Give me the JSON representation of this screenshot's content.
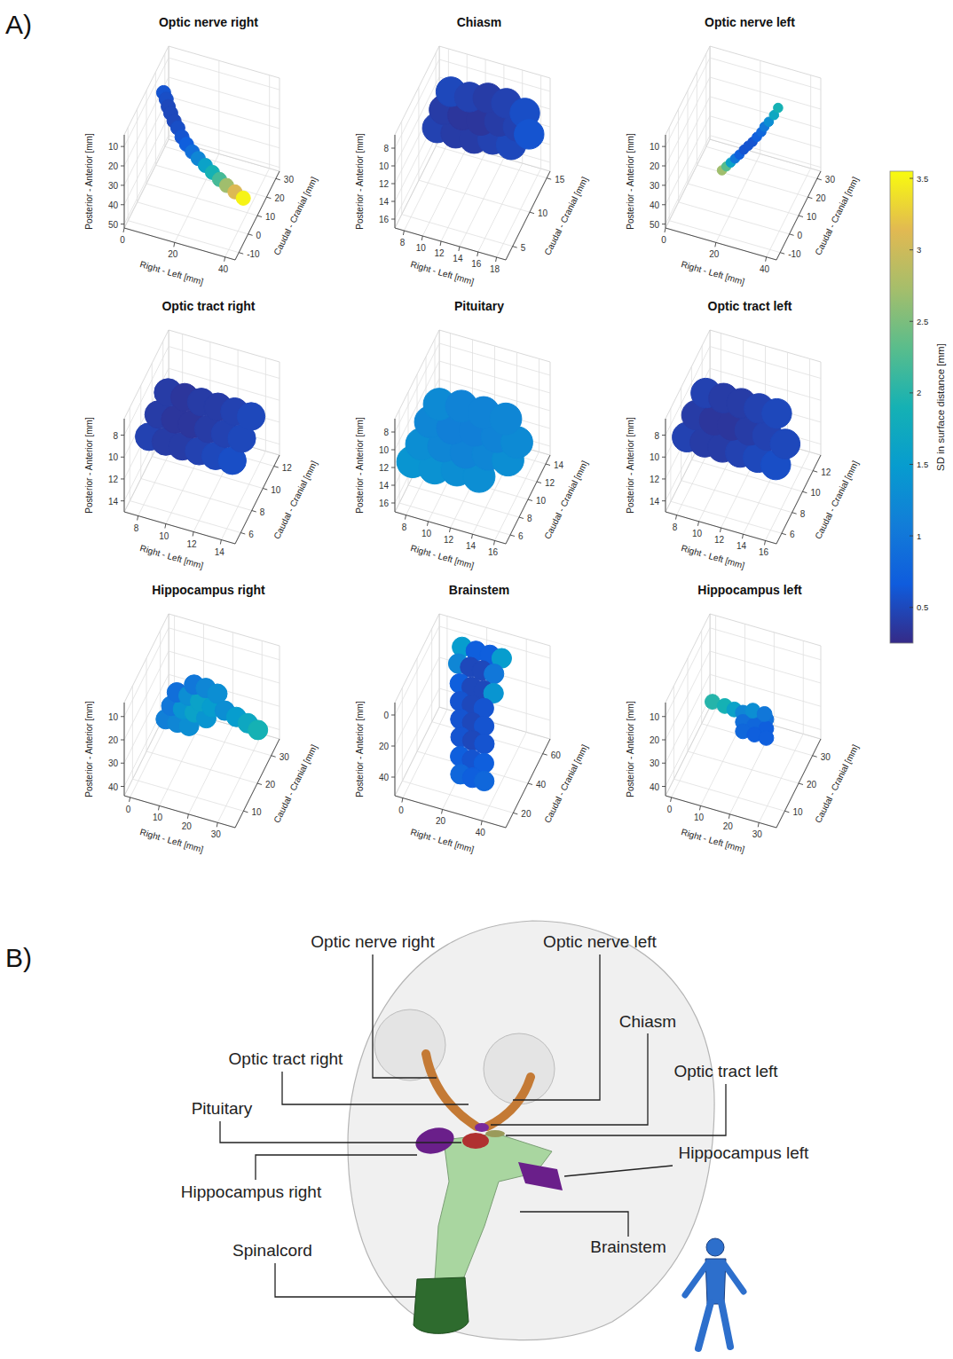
{
  "panel_labels": [
    "A)",
    "B)"
  ],
  "colorbar": {
    "label": "SD in surface distance [mm]",
    "range": [
      0.25,
      3.55
    ],
    "ticks": [
      0.5,
      1,
      1.5,
      2,
      2.5,
      3,
      3.5
    ]
  },
  "chart_data": [
    {
      "type": "scatter3d",
      "title": "Optic nerve right",
      "x_label": "Right - Left [mm]",
      "y_label": "Posterior - Anterior [mm]",
      "z_label": "Caudal - Cranial [mm]",
      "xlim": [
        0,
        44
      ],
      "xticks": [
        0,
        20,
        40
      ],
      "ylim": [
        4,
        52
      ],
      "yticks": [
        10,
        20,
        30,
        40,
        50
      ],
      "zlim": [
        -14,
        34
      ],
      "zticks": [
        -10,
        0,
        10,
        20,
        30
      ],
      "points": {
        "x": [
          5,
          6,
          7,
          8,
          9.5,
          11,
          13,
          15,
          17.5,
          20,
          23,
          26,
          29,
          32,
          35.5,
          39
        ],
        "y": [
          8,
          11,
          14,
          17,
          20,
          23,
          26,
          28.5,
          31,
          33,
          35,
          37,
          39,
          40.5,
          42,
          43.5
        ],
        "z": [
          15,
          15,
          14.5,
          14.5,
          14,
          14,
          13,
          12.5,
          12,
          11.5,
          11,
          10.5,
          10,
          9.5,
          9,
          8.5
        ],
        "sd": [
          0.6,
          0.55,
          0.5,
          0.5,
          0.5,
          0.55,
          0.6,
          0.7,
          0.9,
          1.2,
          1.6,
          1.9,
          2.2,
          2.7,
          3.1,
          3.5
        ]
      }
    },
    {
      "type": "scatter3d",
      "title": "Chiasm",
      "x_label": "Right - Left [mm]",
      "y_label": "Posterior - Anterior [mm]",
      "z_label": "Caudal - Cranial [mm]",
      "xlim": [
        7,
        19
      ],
      "xticks": [
        8,
        10,
        12,
        14,
        16,
        18
      ],
      "ylim": [
        6.5,
        17
      ],
      "yticks": [
        8,
        10,
        12,
        14,
        16
      ],
      "zlim": [
        3,
        16
      ],
      "zticks": [
        5,
        10,
        15
      ],
      "points": {
        "x": [
          9,
          11,
          13,
          15,
          17,
          9,
          11,
          13,
          15,
          17,
          9,
          11,
          13,
          15,
          17,
          18.2
        ],
        "y": [
          10.5,
          10.5,
          10.5,
          10,
          10,
          10,
          10,
          10,
          9.5,
          9.5,
          9.5,
          9.5,
          9,
          9,
          9.5,
          10
        ],
        "z": [
          10,
          10,
          10,
          10,
          10,
          12,
          12,
          12,
          12,
          12,
          14,
          14,
          14,
          14,
          14,
          12
        ],
        "sd": [
          0.45,
          0.4,
          0.4,
          0.45,
          0.5,
          0.4,
          0.35,
          0.35,
          0.4,
          0.45,
          0.5,
          0.45,
          0.4,
          0.45,
          0.55,
          0.6
        ]
      }
    },
    {
      "type": "scatter3d",
      "title": "Optic nerve left",
      "x_label": "Right - Left [mm]",
      "y_label": "Posterior - Anterior [mm]",
      "z_label": "Caudal - Cranial [mm]",
      "xlim": [
        0,
        44
      ],
      "xticks": [
        0,
        20,
        40
      ],
      "ylim": [
        4,
        52
      ],
      "yticks": [
        10,
        20,
        30,
        40,
        50
      ],
      "zlim": [
        -14,
        34
      ],
      "zticks": [
        -10,
        0,
        10,
        20,
        30
      ],
      "points": {
        "x": [
          18,
          19,
          20,
          21,
          22,
          23,
          24,
          25,
          26,
          27,
          27.5,
          28.5,
          29.5,
          30
        ],
        "y": [
          27,
          26.5,
          26,
          25.5,
          25,
          24,
          23.5,
          23,
          22,
          21,
          20,
          19,
          18,
          17
        ],
        "z": [
          -2,
          0,
          2,
          4,
          6,
          8,
          10,
          12,
          14,
          16,
          18,
          20,
          23,
          26
        ],
        "sd": [
          2.7,
          2.3,
          1.6,
          1.0,
          0.7,
          0.6,
          0.6,
          0.6,
          0.7,
          0.8,
          1.0,
          1.3,
          1.7,
          1.9
        ]
      }
    },
    {
      "type": "scatter3d",
      "title": "Optic tract right",
      "x_label": "Right - Left [mm]",
      "y_label": "Posterior - Anterior [mm]",
      "z_label": "Caudal - Cranial [mm]",
      "xlim": [
        7,
        15
      ],
      "xticks": [
        8,
        10,
        12,
        14
      ],
      "ylim": [
        6.5,
        15
      ],
      "yticks": [
        8,
        10,
        12,
        14
      ],
      "zlim": [
        5,
        13
      ],
      "zticks": [
        6,
        8,
        10,
        12
      ],
      "points": {
        "x": [
          8,
          9.2,
          10.4,
          11.6,
          12.8,
          14,
          8,
          9.2,
          10.4,
          11.6,
          12.8,
          14,
          8,
          9.2,
          10.4,
          11.6,
          12.8,
          14
        ],
        "y": [
          9.8,
          9.8,
          9.8,
          9.8,
          9.8,
          9.8,
          9.5,
          9.5,
          9.5,
          9.5,
          9.5,
          9.5,
          9.2,
          9.2,
          9.2,
          9.2,
          9.2,
          9.2
        ],
        "z": [
          7,
          7,
          7,
          7,
          7,
          7,
          8.7,
          8.7,
          8.7,
          8.7,
          8.7,
          8.7,
          10.4,
          10.4,
          10.4,
          10.4,
          10.4,
          10.4
        ],
        "sd": [
          0.45,
          0.4,
          0.4,
          0.45,
          0.5,
          0.55,
          0.4,
          0.35,
          0.35,
          0.4,
          0.45,
          0.5,
          0.4,
          0.35,
          0.4,
          0.4,
          0.45,
          0.5
        ]
      }
    },
    {
      "type": "scatter3d",
      "title": "Pituitary",
      "x_label": "Right - Left [mm]",
      "y_label": "Posterior - Anterior [mm]",
      "z_label": "Caudal - Cranial [mm]",
      "xlim": [
        7,
        17
      ],
      "xticks": [
        8,
        10,
        12,
        14,
        16
      ],
      "ylim": [
        6.5,
        17
      ],
      "yticks": [
        8,
        10,
        12,
        14,
        16
      ],
      "zlim": [
        5,
        15
      ],
      "zticks": [
        6,
        8,
        10,
        12,
        14
      ],
      "points": {
        "x": [
          8,
          10,
          12,
          14,
          8,
          10,
          12,
          14,
          15.8,
          8,
          10,
          12,
          14,
          15.8,
          8,
          10,
          12,
          14
        ],
        "y": [
          12.5,
          12.5,
          12,
          12,
          12.5,
          12,
          12,
          11.5,
          11.5,
          12,
          12,
          11.5,
          11.5,
          11.5,
          12,
          11.5,
          11.5,
          11.5
        ],
        "z": [
          6.5,
          6.5,
          6.5,
          6.5,
          8.5,
          8.5,
          8.5,
          8.5,
          8.5,
          10.5,
          10.5,
          10.5,
          10.5,
          10.5,
          12.5,
          12.5,
          12.5,
          12.5
        ],
        "sd": [
          1.4,
          1.35,
          1.3,
          1.3,
          1.3,
          1.2,
          1.15,
          1.2,
          1.3,
          1.2,
          1.1,
          1.1,
          1.15,
          1.25,
          1.25,
          1.15,
          1.15,
          1.2
        ]
      }
    },
    {
      "type": "scatter3d",
      "title": "Optic tract left",
      "x_label": "Right - Left [mm]",
      "y_label": "Posterior - Anterior [mm]",
      "z_label": "Caudal - Cranial [mm]",
      "xlim": [
        7,
        17
      ],
      "xticks": [
        8,
        10,
        12,
        14,
        16
      ],
      "ylim": [
        6.5,
        15
      ],
      "yticks": [
        8,
        10,
        12,
        14
      ],
      "zlim": [
        5,
        13.5
      ],
      "zticks": [
        6,
        8,
        10,
        12
      ],
      "points": {
        "x": [
          8,
          9.6,
          11.2,
          12.8,
          14.4,
          16,
          8,
          9.6,
          11.2,
          12.8,
          14.4,
          16,
          8,
          9.6,
          11.2,
          12.8,
          14.4
        ],
        "y": [
          9.8,
          9.8,
          9.8,
          9.8,
          9.8,
          10,
          9.5,
          9.5,
          9.5,
          9.5,
          9.5,
          9.8,
          9.2,
          9.2,
          9.2,
          9.2,
          9.2
        ],
        "z": [
          7,
          7,
          7,
          7,
          7,
          7,
          8.8,
          8.8,
          8.8,
          8.8,
          8.8,
          8.8,
          10.6,
          10.6,
          10.6,
          10.6,
          10.6
        ],
        "sd": [
          0.45,
          0.4,
          0.4,
          0.45,
          0.5,
          0.55,
          0.4,
          0.35,
          0.35,
          0.4,
          0.45,
          0.5,
          0.45,
          0.4,
          0.4,
          0.45,
          0.5
        ]
      }
    },
    {
      "type": "scatter3d",
      "title": "Hippocampus right",
      "x_label": "Right - Left [mm]",
      "y_label": "Posterior - Anterior [mm]",
      "z_label": "Caudal - Cranial [mm]",
      "xlim": [
        -2,
        36
      ],
      "xticks": [
        0,
        10,
        20,
        30
      ],
      "ylim": [
        4,
        44
      ],
      "yticks": [
        10,
        20,
        30,
        40
      ],
      "zlim": [
        4,
        36
      ],
      "zticks": [
        10,
        20,
        30
      ],
      "points": {
        "x": [
          7,
          11,
          15,
          7,
          11,
          15,
          19,
          7,
          11,
          15,
          19,
          11,
          15,
          19,
          22,
          25,
          28,
          31
        ],
        "y": [
          21,
          21,
          21,
          20,
          20,
          20,
          21,
          19,
          19,
          20,
          21,
          19,
          19,
          20,
          25,
          29,
          33,
          36
        ],
        "z": [
          15,
          15,
          15,
          19,
          19,
          19,
          19,
          23,
          23,
          23,
          23,
          27,
          27,
          27,
          26,
          28,
          30,
          31
        ],
        "sd": [
          1.1,
          1.2,
          1.3,
          1.0,
          1.4,
          1.6,
          1.4,
          0.9,
          1.3,
          1.6,
          1.5,
          1.0,
          1.2,
          1.3,
          1.3,
          1.5,
          1.7,
          1.9
        ]
      }
    },
    {
      "type": "scatter3d",
      "title": "Brainstem",
      "x_label": "Right - Left [mm]",
      "y_label": "Posterior - Anterior [mm]",
      "z_label": "Caudal - Cranial [mm]",
      "xlim": [
        -4,
        52
      ],
      "xticks": [
        0,
        20,
        40
      ],
      "ylim": [
        -8,
        52
      ],
      "yticks": [
        0,
        20,
        40
      ],
      "zlim": [
        10,
        70
      ],
      "zticks": [
        20,
        40,
        60
      ],
      "points": {
        "x": [
          12,
          19,
          26,
          32,
          12,
          18,
          24,
          30,
          15,
          21,
          27,
          32,
          17,
          23,
          29,
          19,
          25,
          31,
          21,
          27,
          33,
          23,
          29,
          35,
          25,
          31,
          37
        ],
        "y": [
          -4,
          -4,
          -4,
          -4,
          2,
          2,
          2,
          2,
          8,
          8,
          8,
          8,
          14,
          14,
          14,
          20,
          20,
          20,
          26,
          26,
          26,
          32,
          32,
          32,
          38,
          38,
          38
        ],
        "z": [
          58,
          58,
          58,
          58,
          53,
          53,
          53,
          53,
          47,
          47,
          47,
          47,
          42,
          42,
          42,
          37,
          37,
          37,
          32,
          32,
          32,
          26,
          26,
          26,
          21,
          21,
          21
        ],
        "sd": [
          1.5,
          0.7,
          0.7,
          1.5,
          1.2,
          0.5,
          0.5,
          1.0,
          0.7,
          0.5,
          0.5,
          1.4,
          0.6,
          0.5,
          0.6,
          0.6,
          0.5,
          0.6,
          0.6,
          0.5,
          0.6,
          0.7,
          0.6,
          0.7,
          0.8,
          0.7,
          0.8
        ]
      }
    },
    {
      "type": "scatter3d",
      "title": "Hippocampus left",
      "x_label": "Right - Left [mm]",
      "y_label": "Posterior - Anterior [mm]",
      "z_label": "Caudal - Cranial [mm]",
      "xlim": [
        -2,
        36
      ],
      "xticks": [
        0,
        10,
        20,
        30
      ],
      "ylim": [
        4,
        44
      ],
      "yticks": [
        10,
        20,
        30,
        40
      ],
      "zlim": [
        4,
        36
      ],
      "zticks": [
        10,
        20,
        30
      ],
      "points": {
        "x": [
          6,
          10,
          13,
          15,
          19,
          23,
          15,
          19,
          23,
          15,
          19,
          23,
          17,
          21
        ],
        "y": [
          21,
          22,
          23,
          26,
          26,
          26,
          30,
          30,
          30,
          34,
          34,
          34,
          28,
          28
        ],
        "z": [
          21,
          21.5,
          22,
          24,
          24,
          24,
          24,
          24,
          24,
          24,
          24,
          24,
          27,
          27
        ],
        "sd": [
          2.0,
          1.9,
          1.6,
          1.2,
          1.0,
          0.9,
          0.9,
          0.8,
          0.7,
          0.8,
          0.7,
          0.7,
          1.3,
          1.0
        ]
      }
    }
  ],
  "diagram": {
    "labels": [
      "Optic nerve right",
      "Optic nerve left",
      "Chiasm",
      "Optic tract right",
      "Optic tract left",
      "Pituitary",
      "Hippocampus left",
      "Hippocampus right",
      "Spinalcord",
      "Brainstem"
    ]
  }
}
